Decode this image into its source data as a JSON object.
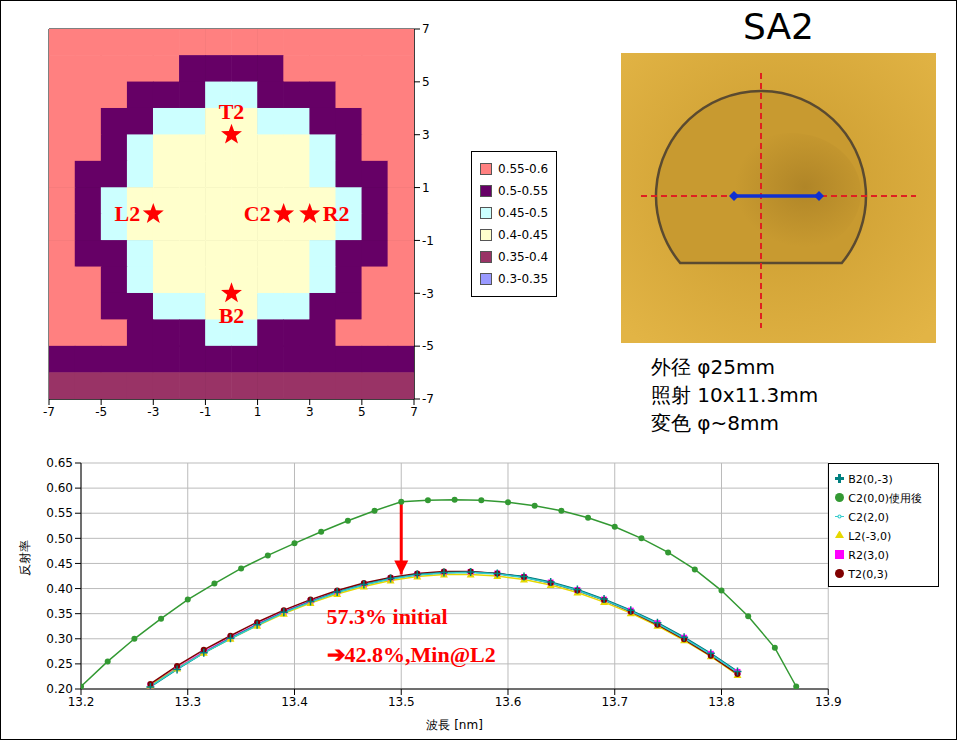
{
  "chart_data": [
    {
      "type": "heatmap",
      "xlim": [
        -7,
        7
      ],
      "ylim": [
        -7,
        7
      ],
      "xticks": [
        -7,
        -5,
        -3,
        -1,
        1,
        3,
        5,
        7
      ],
      "yticks": [
        -7,
        -5,
        -3,
        -1,
        1,
        3,
        5,
        7
      ],
      "grid": true,
      "legend": "right",
      "x": [
        -6.5,
        -5.5,
        -4.5,
        -3.5,
        -2.5,
        -1.5,
        -0.5,
        0.5,
        1.5,
        2.5,
        3.5,
        4.5,
        5.5,
        6.5
      ],
      "y": [
        6.5,
        5.5,
        4.5,
        3.5,
        2.5,
        1.5,
        0.5,
        -0.5,
        -1.5,
        -2.5,
        -3.5,
        -4.5,
        -5.5,
        -6.5
      ],
      "cells": [
        [
          0.575,
          0.575,
          0.575,
          0.575,
          0.575,
          0.575,
          0.575,
          0.575,
          0.575,
          0.575,
          0.575,
          0.575,
          0.575,
          0.575
        ],
        [
          0.575,
          0.575,
          0.575,
          0.575,
          0.575,
          0.525,
          0.525,
          0.525,
          0.525,
          0.575,
          0.575,
          0.575,
          0.575,
          0.575
        ],
        [
          0.575,
          0.575,
          0.575,
          0.525,
          0.525,
          0.525,
          0.475,
          0.475,
          0.525,
          0.525,
          0.525,
          0.575,
          0.575,
          0.575
        ],
        [
          0.575,
          0.575,
          0.525,
          0.525,
          0.475,
          0.475,
          0.425,
          0.425,
          0.475,
          0.475,
          0.525,
          0.525,
          0.575,
          0.575
        ],
        [
          0.575,
          0.575,
          0.525,
          0.475,
          0.425,
          0.425,
          0.425,
          0.425,
          0.425,
          0.425,
          0.475,
          0.525,
          0.575,
          0.575
        ],
        [
          0.575,
          0.525,
          0.525,
          0.475,
          0.425,
          0.425,
          0.425,
          0.425,
          0.425,
          0.425,
          0.475,
          0.525,
          0.525,
          0.575
        ],
        [
          0.575,
          0.525,
          0.475,
          0.425,
          0.425,
          0.425,
          0.425,
          0.425,
          0.425,
          0.425,
          0.425,
          0.475,
          0.525,
          0.575
        ],
        [
          0.575,
          0.525,
          0.475,
          0.425,
          0.425,
          0.425,
          0.425,
          0.425,
          0.425,
          0.425,
          0.425,
          0.475,
          0.525,
          0.575
        ],
        [
          0.575,
          0.525,
          0.525,
          0.475,
          0.425,
          0.425,
          0.425,
          0.425,
          0.425,
          0.425,
          0.475,
          0.525,
          0.525,
          0.575
        ],
        [
          0.575,
          0.575,
          0.525,
          0.475,
          0.425,
          0.425,
          0.425,
          0.425,
          0.425,
          0.425,
          0.475,
          0.525,
          0.575,
          0.575
        ],
        [
          0.575,
          0.575,
          0.525,
          0.525,
          0.475,
          0.475,
          0.425,
          0.425,
          0.475,
          0.475,
          0.525,
          0.525,
          0.575,
          0.575
        ],
        [
          0.575,
          0.575,
          0.575,
          0.525,
          0.525,
          0.525,
          0.475,
          0.475,
          0.525,
          0.525,
          0.525,
          0.575,
          0.575,
          0.575
        ],
        [
          0.525,
          0.525,
          0.525,
          0.525,
          0.525,
          0.525,
          0.525,
          0.525,
          0.525,
          0.525,
          0.525,
          0.525,
          0.525,
          0.525
        ],
        [
          0.375,
          0.375,
          0.375,
          0.375,
          0.375,
          0.375,
          0.375,
          0.375,
          0.375,
          0.375,
          0.375,
          0.375,
          0.375,
          0.375
        ]
      ],
      "color_bands": [
        {
          "range": [
            0.55,
            0.6
          ],
          "label": "0.55-0.6",
          "color": "#FF8080"
        },
        {
          "range": [
            0.5,
            0.55
          ],
          "label": "0.5-0.55",
          "color": "#660066"
        },
        {
          "range": [
            0.45,
            0.5
          ],
          "label": "0.45-0.5",
          "color": "#CCFFFF"
        },
        {
          "range": [
            0.4,
            0.45
          ],
          "label": "0.4-0.45",
          "color": "#FFFFCC"
        },
        {
          "range": [
            0.35,
            0.4
          ],
          "label": "0.35-0.4",
          "color": "#993366"
        },
        {
          "range": [
            0.3,
            0.35
          ],
          "label": "0.3-0.35",
          "color": "#9999FF"
        }
      ],
      "markers": {
        "marker": "star",
        "color": "#FF0000",
        "points": [
          {
            "label": "T2",
            "x": 0,
            "y": 3
          },
          {
            "label": "L2",
            "x": -3,
            "y": 0
          },
          {
            "label": "C2",
            "x": 2,
            "y": 0
          },
          {
            "label": "R2",
            "x": 3,
            "y": 0
          },
          {
            "label": "B2",
            "x": 0,
            "y": -3
          }
        ]
      }
    },
    {
      "type": "line",
      "xlabel": "波長 [nm]",
      "ylabel": "反射率",
      "xlim": [
        13.2,
        13.9
      ],
      "xticks": [
        13.2,
        13.3,
        13.4,
        13.5,
        13.6,
        13.7,
        13.8,
        13.9
      ],
      "ylim": [
        0.2,
        0.65
      ],
      "yticks": [
        {
          "value": 0.2,
          "label": "0.20"
        },
        0.25,
        {
          "value": 0.3,
          "label": "0.30"
        },
        0.35,
        {
          "value": 0.4,
          "label": "0.40"
        },
        0.45,
        {
          "value": 0.5,
          "label": "0.50"
        },
        0.55,
        {
          "value": 0.6,
          "label": "0.60"
        },
        0.65
      ],
      "grid": true,
      "legend": "right",
      "series": [
        {
          "name": "R2(3,0)",
          "color": "#FF00FF",
          "marker": "square",
          "x": [
            13.265,
            13.29,
            13.315,
            13.34,
            13.365,
            13.39,
            13.415,
            13.44,
            13.465,
            13.49,
            13.515,
            13.54,
            13.565,
            13.59,
            13.615,
            13.64,
            13.665,
            13.69,
            13.715,
            13.74,
            13.765,
            13.79,
            13.815
          ],
          "values": [
            0.207,
            0.242,
            0.274,
            0.302,
            0.329,
            0.354,
            0.375,
            0.393,
            0.408,
            0.42,
            0.428,
            0.432,
            0.433,
            0.43,
            0.423,
            0.412,
            0.397,
            0.378,
            0.356,
            0.331,
            0.302,
            0.27,
            0.234
          ]
        },
        {
          "name": "L2(-3,0)",
          "color": "#E6D800",
          "marker": "triangle",
          "x": [
            13.265,
            13.29,
            13.315,
            13.34,
            13.365,
            13.39,
            13.415,
            13.44,
            13.465,
            13.49,
            13.515,
            13.54,
            13.565,
            13.59,
            13.615,
            13.64,
            13.665,
            13.69,
            13.715,
            13.74,
            13.765,
            13.79,
            13.815
          ],
          "values": [
            0.207,
            0.241,
            0.272,
            0.3,
            0.326,
            0.35,
            0.371,
            0.389,
            0.404,
            0.416,
            0.424,
            0.428,
            0.428,
            0.425,
            0.418,
            0.407,
            0.392,
            0.373,
            0.351,
            0.326,
            0.297,
            0.265,
            0.228
          ]
        },
        {
          "name": "T2(0,3)",
          "color": "#800000",
          "marker": "circle",
          "x": [
            13.265,
            13.29,
            13.315,
            13.34,
            13.365,
            13.39,
            13.415,
            13.44,
            13.465,
            13.49,
            13.515,
            13.54,
            13.565,
            13.59,
            13.615,
            13.64,
            13.665,
            13.69,
            13.715,
            13.74,
            13.765,
            13.79,
            13.815
          ],
          "values": [
            0.21,
            0.246,
            0.278,
            0.306,
            0.333,
            0.357,
            0.378,
            0.396,
            0.411,
            0.422,
            0.43,
            0.434,
            0.434,
            0.43,
            0.423,
            0.411,
            0.396,
            0.377,
            0.354,
            0.328,
            0.299,
            0.266,
            0.23
          ]
        },
        {
          "name": "B2(0,-3)",
          "color": "#008080",
          "marker": "plus",
          "x": [
            13.265,
            13.29,
            13.315,
            13.34,
            13.365,
            13.39,
            13.415,
            13.44,
            13.465,
            13.49,
            13.515,
            13.54,
            13.565,
            13.59,
            13.615,
            13.64,
            13.665,
            13.69,
            13.715,
            13.74,
            13.765,
            13.79,
            13.815
          ],
          "values": [
            0.204,
            0.239,
            0.272,
            0.301,
            0.328,
            0.353,
            0.374,
            0.393,
            0.408,
            0.42,
            0.428,
            0.432,
            0.433,
            0.43,
            0.424,
            0.413,
            0.398,
            0.379,
            0.357,
            0.332,
            0.303,
            0.271,
            0.235
          ]
        },
        {
          "name": "C2(2,0)",
          "color": "#33CCCC",
          "marker": "none",
          "x": [
            13.265,
            13.29,
            13.315,
            13.34,
            13.365,
            13.39,
            13.415,
            13.44,
            13.465,
            13.49,
            13.515,
            13.54,
            13.565,
            13.59,
            13.615,
            13.64,
            13.665,
            13.69,
            13.715,
            13.74,
            13.765,
            13.79,
            13.815
          ],
          "values": [
            0.205,
            0.24,
            0.272,
            0.3,
            0.327,
            0.352,
            0.373,
            0.392,
            0.407,
            0.419,
            0.427,
            0.431,
            0.432,
            0.429,
            0.422,
            0.411,
            0.396,
            0.377,
            0.355,
            0.33,
            0.301,
            0.269,
            0.233
          ]
        },
        {
          "name": "C2(0,0)使用後",
          "color": "#339933",
          "marker": "circle",
          "x": [
            13.2,
            13.225,
            13.25,
            13.275,
            13.3,
            13.325,
            13.35,
            13.375,
            13.4,
            13.425,
            13.45,
            13.475,
            13.5,
            13.525,
            13.55,
            13.575,
            13.6,
            13.625,
            13.65,
            13.675,
            13.7,
            13.725,
            13.75,
            13.775,
            13.8,
            13.825,
            13.85,
            13.87
          ],
          "values": [
            0.205,
            0.255,
            0.3,
            0.34,
            0.378,
            0.41,
            0.44,
            0.466,
            0.49,
            0.513,
            0.535,
            0.555,
            0.573,
            0.576,
            0.577,
            0.576,
            0.572,
            0.565,
            0.555,
            0.541,
            0.523,
            0.5,
            0.472,
            0.438,
            0.396,
            0.345,
            0.282,
            0.205
          ]
        }
      ],
      "arrow": {
        "x": 13.5,
        "from": 0.573,
        "to": 0.428,
        "color": "#FF0000"
      },
      "annotations": [
        {
          "text": "57.3% initial",
          "x": 13.43,
          "y": 0.345,
          "color": "#FF0000"
        },
        {
          "text": "➔42.8%,Min@L2",
          "x": 13.43,
          "y": 0.27,
          "color": "#FF0000"
        }
      ]
    }
  ],
  "panel": {
    "title": "SA2",
    "notes": [
      "外径 φ25mm",
      "照射 10x11.3mm",
      "変色 φ~8mm"
    ]
  }
}
